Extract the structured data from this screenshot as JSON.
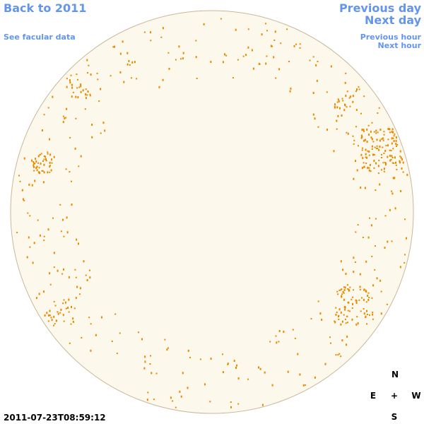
{
  "nav": {
    "back": "Back to 2011",
    "facular_data": "See facular data",
    "previous_day": "Previous day",
    "next_day": "Next day",
    "previous_hour": "Previous hour",
    "next_hour": "Next hour"
  },
  "timestamp": "2011-07-23T08:59:12",
  "compass": {
    "north": "N",
    "east": "E",
    "center": "+",
    "west": "W",
    "south": "S"
  }
}
